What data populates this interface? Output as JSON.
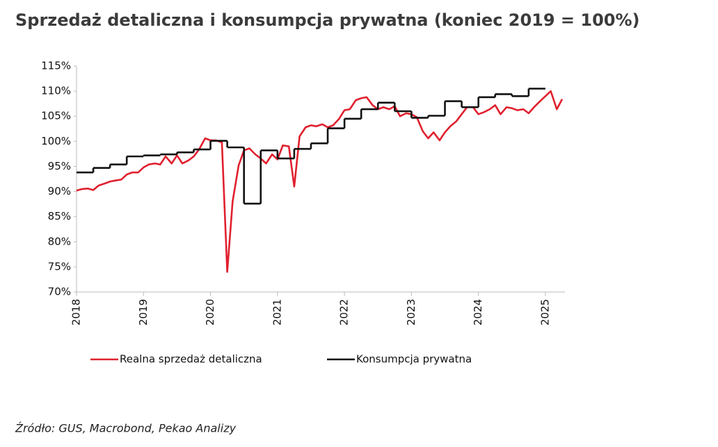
{
  "chart_data": {
    "type": "line",
    "title": "Sprzedaż detaliczna i konsumpcja prywatna (koniec 2019 = 100%)",
    "source": "Źródło: GUS, Macrobond, Pekao Analizy",
    "xlim": [
      2018,
      2025.25
    ],
    "xticks": [
      2018,
      2019,
      2020,
      2021,
      2022,
      2023,
      2024,
      2025
    ],
    "ylim": [
      70,
      115
    ],
    "yticks": [
      {
        "value": 70,
        "label": "70%"
      },
      {
        "value": 75,
        "label": "75%"
      },
      {
        "value": 80,
        "label": "80%"
      },
      {
        "value": 85,
        "label": "85%"
      },
      {
        "value": 90,
        "label": "90%"
      },
      {
        "value": 95,
        "label": "95%"
      },
      {
        "value": 100,
        "label": "100%"
      },
      {
        "value": 105,
        "label": "105%"
      },
      {
        "value": 110,
        "label": "110%"
      },
      {
        "value": 115,
        "label": "115%"
      }
    ],
    "grid": false,
    "series": [
      {
        "name": "Realna sprzedaż detaliczna",
        "color": "#e0202e",
        "step": false,
        "x": [
          2018,
          2018.08,
          2018.17,
          2018.25,
          2018.33,
          2018.42,
          2018.5,
          2018.58,
          2018.67,
          2018.75,
          2018.83,
          2018.92,
          2019,
          2019.08,
          2019.17,
          2019.25,
          2019.33,
          2019.42,
          2019.5,
          2019.58,
          2019.67,
          2019.75,
          2019.83,
          2019.92,
          2020,
          2020.08,
          2020.17,
          2020.25,
          2020.33,
          2020.42,
          2020.5,
          2020.58,
          2020.67,
          2020.75,
          2020.83,
          2020.92,
          2021,
          2021.08,
          2021.17,
          2021.25,
          2021.33,
          2021.42,
          2021.5,
          2021.58,
          2021.67,
          2021.75,
          2021.83,
          2021.92,
          2022,
          2022.08,
          2022.17,
          2022.25,
          2022.33,
          2022.42,
          2022.5,
          2022.58,
          2022.67,
          2022.75,
          2022.83,
          2022.92,
          2023,
          2023.08,
          2023.17,
          2023.25,
          2023.33,
          2023.42,
          2023.5,
          2023.58,
          2023.67,
          2023.75,
          2023.83,
          2023.92,
          2024,
          2024.08,
          2024.17,
          2024.25,
          2024.33,
          2024.42,
          2024.5,
          2024.58,
          2024.67,
          2024.75,
          2024.83,
          2024.92,
          2025,
          2025.08,
          2025.17,
          2025.25
        ],
        "values": [
          90.2,
          90.5,
          90.6,
          90.3,
          91.2,
          91.6,
          92.0,
          92.2,
          92.4,
          93.4,
          93.8,
          93.8,
          94.8,
          95.4,
          95.6,
          95.4,
          97.0,
          95.6,
          97.2,
          95.6,
          96.2,
          97.0,
          98.4,
          100.6,
          100.2,
          100.2,
          99.8,
          74.0,
          88.0,
          95.2,
          98.2,
          98.6,
          97.4,
          96.6,
          95.6,
          97.4,
          96.4,
          99.2,
          99.0,
          91.0,
          101.0,
          102.8,
          103.2,
          103.0,
          103.4,
          102.8,
          103.2,
          104.5,
          106.2,
          106.4,
          108.2,
          108.6,
          108.8,
          107.2,
          106.4,
          106.8,
          106.4,
          107.0,
          105.0,
          105.6,
          105.4,
          104.8,
          102.0,
          100.6,
          101.8,
          100.2,
          101.8,
          103.0,
          104.0,
          105.4,
          106.8,
          106.8,
          105.4,
          105.8,
          106.4,
          107.2,
          105.4,
          106.8,
          106.6,
          106.2,
          106.4,
          105.6,
          106.8,
          108.0,
          109.0,
          110.0,
          106.4,
          108.4
        ]
      },
      {
        "name": "Konsumpcja prywatna",
        "color": "#111111",
        "step": true,
        "x": [
          2018,
          2018.25,
          2018.5,
          2018.75,
          2019,
          2019.25,
          2019.5,
          2019.75,
          2020,
          2020.25,
          2020.5,
          2020.75,
          2021,
          2021.25,
          2021.5,
          2021.75,
          2022,
          2022.25,
          2022.5,
          2022.75,
          2023,
          2023.25,
          2023.5,
          2023.75,
          2024,
          2024.25,
          2024.5,
          2024.75
        ],
        "values": [
          93.8,
          94.7,
          95.4,
          97.0,
          97.2,
          97.4,
          97.8,
          98.4,
          100.1,
          98.8,
          87.6,
          98.2,
          96.6,
          98.5,
          99.6,
          102.6,
          104.5,
          106.4,
          107.7,
          106.0,
          104.7,
          105.1,
          108.0,
          106.8,
          108.8,
          109.4,
          109.0,
          110.5
        ]
      }
    ],
    "legend": "bottom"
  }
}
